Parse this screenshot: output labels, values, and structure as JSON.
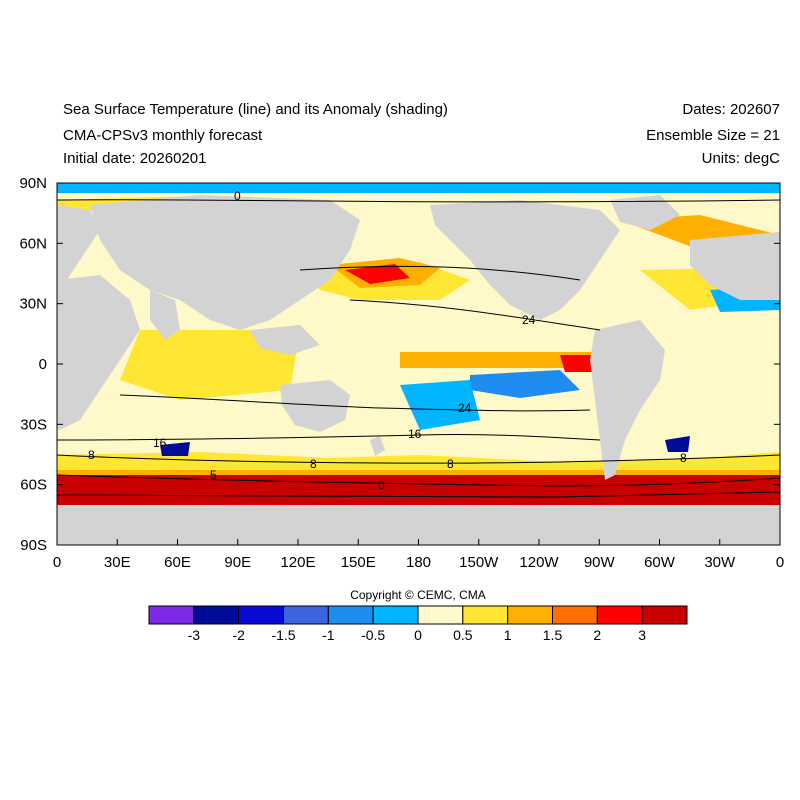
{
  "header": {
    "title_left_1": "Sea Surface Temperature (line) and its Anomaly (shading)",
    "title_left_2": "CMA-CPSv3 monthly forecast",
    "title_left_3": "Initial date: 20260201",
    "title_right_1": "Dates: 202607",
    "title_right_2": "Ensemble Size = 21",
    "title_right_3": "Units: degC"
  },
  "axes": {
    "y_ticks": [
      "90N",
      "60N",
      "30N",
      "0",
      "30S",
      "60S",
      "90S"
    ],
    "x_ticks": [
      "0",
      "30E",
      "60E",
      "90E",
      "120E",
      "150E",
      "180",
      "150W",
      "120W",
      "90W",
      "60W",
      "30W",
      "0"
    ]
  },
  "contour_labels": [
    "0",
    "24",
    "24",
    "16",
    "16",
    "8",
    "8",
    "8",
    "8",
    "0",
    "5"
  ],
  "colorbar": {
    "labels": [
      "-3",
      "-2",
      "-1.5",
      "-1",
      "-0.5",
      "0",
      "0.5",
      "1",
      "1.5",
      "2",
      "3"
    ],
    "colors": [
      "#7d2ae8",
      "#000b9a",
      "#0a0ad8",
      "#3c64e0",
      "#1e8cf0",
      "#00b4ff",
      "#fffacd",
      "#ffe632",
      "#ffaf00",
      "#ff6e00",
      "#ff0000",
      "#c80000"
    ]
  },
  "map_colors": {
    "land": "#d3d3d3",
    "ocean_base": "#fff8c8"
  },
  "copyright": "Copyright © CEMC, CMA"
}
